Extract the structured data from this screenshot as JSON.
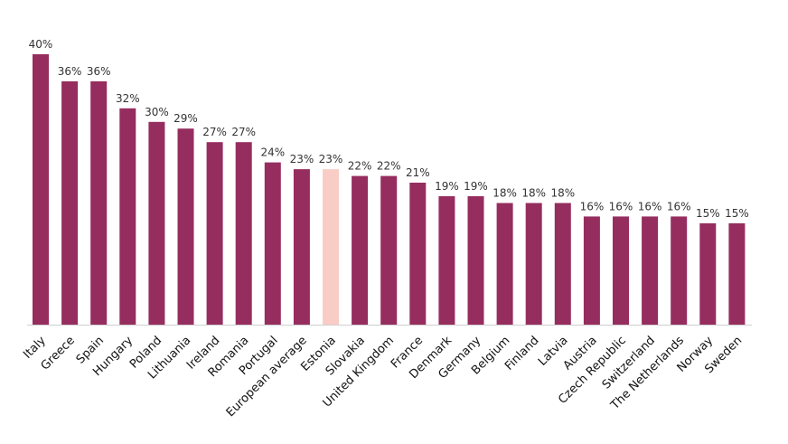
{
  "chart_data": {
    "type": "bar",
    "categories": [
      "Italy",
      "Greece",
      "Spain",
      "Hungary",
      "Poland",
      "Lithuania",
      "Ireland",
      "Romania",
      "Portugal",
      "European average",
      "Estonia",
      "Slovakia",
      "United Kingdom",
      "France",
      "Denmark",
      "Germany",
      "Belgium",
      "Finland",
      "Latvia",
      "Austria",
      "Czech Republic",
      "Switzerland",
      "The Netherlands",
      "Norway",
      "Sweden"
    ],
    "values": [
      40,
      36,
      36,
      32,
      30,
      29,
      27,
      27,
      24,
      23,
      23,
      22,
      22,
      21,
      19,
      19,
      18,
      18,
      18,
      16,
      16,
      16,
      16,
      15,
      15
    ],
    "value_labels": [
      "40%",
      "36%",
      "36%",
      "32%",
      "30%",
      "29%",
      "27%",
      "27%",
      "24%",
      "23%",
      "23%",
      "22%",
      "22%",
      "21%",
      "19%",
      "19%",
      "18%",
      "18%",
      "18%",
      "16%",
      "16%",
      "16%",
      "16%",
      "15%",
      "15%"
    ],
    "highlight_category": "Estonia",
    "ylim": [
      0,
      40
    ],
    "grid": false,
    "legend": "none"
  },
  "colors": {
    "bar": "#962d5f",
    "highlight": "#f9cdc6",
    "baseline": "#cfcfcf",
    "label": "#333333"
  }
}
